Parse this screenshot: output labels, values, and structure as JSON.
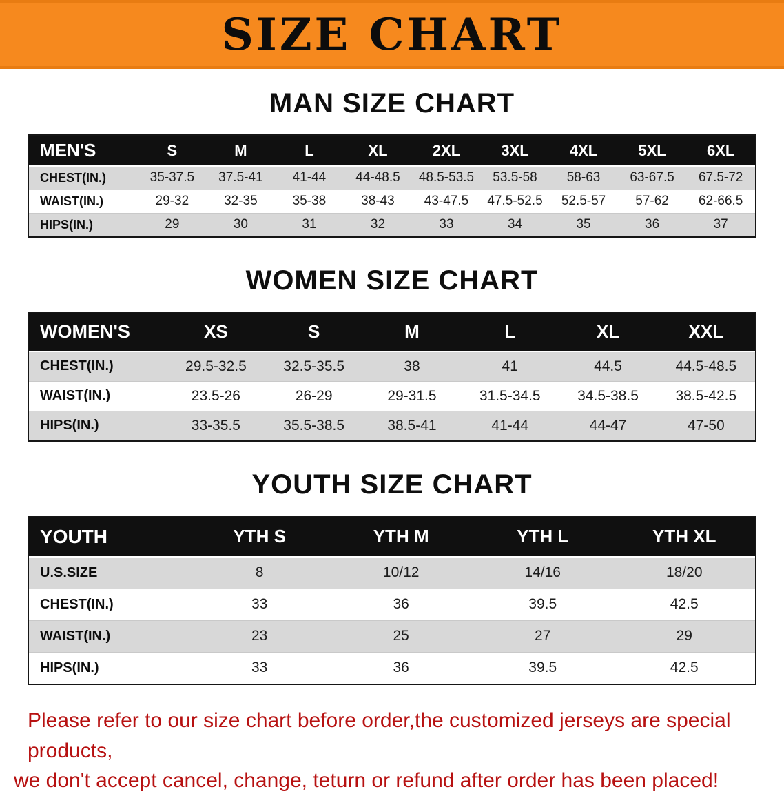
{
  "banner": {
    "title": "SIZE CHART"
  },
  "sections": [
    {
      "id": "men",
      "heading": "MAN SIZE CHART",
      "table": {
        "header": [
          "MEN'S",
          "S",
          "M",
          "L",
          "XL",
          "2XL",
          "3XL",
          "4XL",
          "5XL",
          "6XL"
        ],
        "rows": [
          [
            "CHEST(IN.)",
            "35-37.5",
            "37.5-41",
            "41-44",
            "44-48.5",
            "48.5-53.5",
            "53.5-58",
            "58-63",
            "63-67.5",
            "67.5-72"
          ],
          [
            "WAIST(IN.)",
            "29-32",
            "32-35",
            "35-38",
            "38-43",
            "43-47.5",
            "47.5-52.5",
            "52.5-57",
            "57-62",
            "62-66.5"
          ],
          [
            "HIPS(IN.)",
            "29",
            "30",
            "31",
            "32",
            "33",
            "34",
            "35",
            "36",
            "37"
          ]
        ]
      }
    },
    {
      "id": "women",
      "heading": "WOMEN SIZE CHART",
      "table": {
        "header": [
          "WOMEN'S",
          "XS",
          "S",
          "M",
          "L",
          "XL",
          "XXL"
        ],
        "rows": [
          [
            "CHEST(IN.)",
            "29.5-32.5",
            "32.5-35.5",
            "38",
            "41",
            "44.5",
            "44.5-48.5"
          ],
          [
            "WAIST(IN.)",
            "23.5-26",
            "26-29",
            "29-31.5",
            "31.5-34.5",
            "34.5-38.5",
            "38.5-42.5"
          ],
          [
            "HIPS(IN.)",
            "33-35.5",
            "35.5-38.5",
            "38.5-41",
            "41-44",
            "44-47",
            "47-50"
          ]
        ]
      }
    },
    {
      "id": "youth",
      "heading": "YOUTH SIZE CHART",
      "table": {
        "header": [
          "YOUTH",
          "YTH S",
          "YTH M",
          "YTH L",
          "YTH XL"
        ],
        "rows": [
          [
            "U.S.SIZE",
            "8",
            "10/12",
            "14/16",
            "18/20"
          ],
          [
            "CHEST(IN.)",
            "33",
            "36",
            "39.5",
            "42.5"
          ],
          [
            "WAIST(IN.)",
            "23",
            "25",
            "27",
            "29"
          ],
          [
            "HIPS(IN.)",
            "33",
            "36",
            "39.5",
            "42.5"
          ]
        ]
      }
    }
  ],
  "note": {
    "lines": [
      "Please refer to our size chart before order,the customized jerseys are special products,",
      "we don't accept cancel, change, teturn or refund after order has been placed!"
    ]
  },
  "colors": {
    "banner_bg": "#f6891e",
    "table_header_bg": "#101010",
    "row_stripe": "#d8d8d8",
    "note_text": "#b71111"
  }
}
